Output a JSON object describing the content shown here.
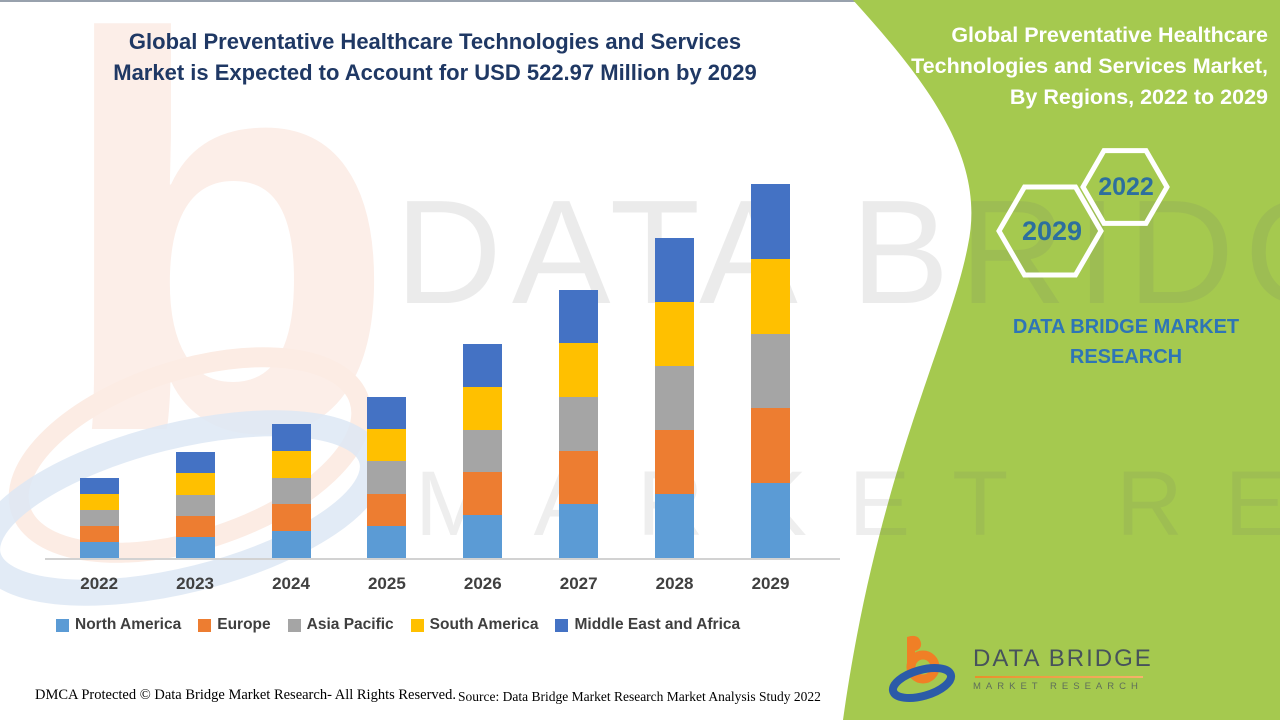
{
  "header": {
    "left_title_line1": "Global Preventative Healthcare Technologies and Services",
    "left_title_line2": "Market is Expected to Account for USD 522.97 Million by 2029",
    "right_title_line1": "Global Preventative Healthcare",
    "right_title_line2": "Technologies and Services Market,",
    "right_title_line3": "By Regions, 2022 to 2029"
  },
  "side_panel": {
    "hexagon_start_year": "2022",
    "hexagon_end_year": "2029",
    "brand_text": "DATA BRIDGE MARKET RESEARCH",
    "background_color": "#A5C94F",
    "year_text_color": "#2D6F9E"
  },
  "chart_data": {
    "type": "bar",
    "stacked": true,
    "unit": "USD Million",
    "title": "Global Preventative Healthcare Technologies and Services Market, By Regions, 2022 to 2029",
    "annotation": "Total market expected to reach USD 522.97 Million by 2029",
    "categories": [
      "2022",
      "2023",
      "2024",
      "2025",
      "2026",
      "2027",
      "2028",
      "2029"
    ],
    "series": [
      {
        "name": "North America",
        "color": "#5B9BD5",
        "values": [
          22.4,
          29.6,
          37.5,
          45.0,
          59.8,
          75.0,
          89.5,
          104.6
        ]
      },
      {
        "name": "Europe",
        "color": "#ED7D31",
        "values": [
          22.4,
          29.6,
          37.5,
          45.0,
          59.8,
          75.0,
          89.5,
          104.6
        ]
      },
      {
        "name": "Asia Pacific",
        "color": "#A5A5A5",
        "values": [
          22.4,
          29.6,
          37.5,
          45.0,
          59.8,
          75.0,
          89.5,
          104.6
        ]
      },
      {
        "name": "South America",
        "color": "#FFC000",
        "values": [
          22.4,
          29.6,
          37.5,
          45.0,
          59.8,
          75.0,
          89.5,
          104.6
        ]
      },
      {
        "name": "Middle East and Africa",
        "color": "#4472C4",
        "values": [
          22.4,
          29.6,
          37.5,
          45.0,
          59.8,
          75.0,
          89.5,
          104.6
        ]
      }
    ],
    "yearly_totals": [
      111.9,
      148.2,
      187.4,
      225.1,
      299.2,
      374.8,
      447.5,
      522.97
    ],
    "ylim": [
      0,
      540
    ],
    "grid": false,
    "legend_position": "bottom",
    "axis_line_color": "#D2D2D2"
  },
  "watermark": {
    "line1": "DATA BRIDGE",
    "line2": "MARKET RESEARCH",
    "letter": "b"
  },
  "logo": {
    "name": "DATA BRIDGE",
    "subtitle": "MARKET RESEARCH"
  },
  "footer": {
    "dmca": "DMCA Protected © Data Bridge Market Research- All Rights Reserved.",
    "source": "Source: Data Bridge Market Research Market Analysis Study 2022"
  }
}
